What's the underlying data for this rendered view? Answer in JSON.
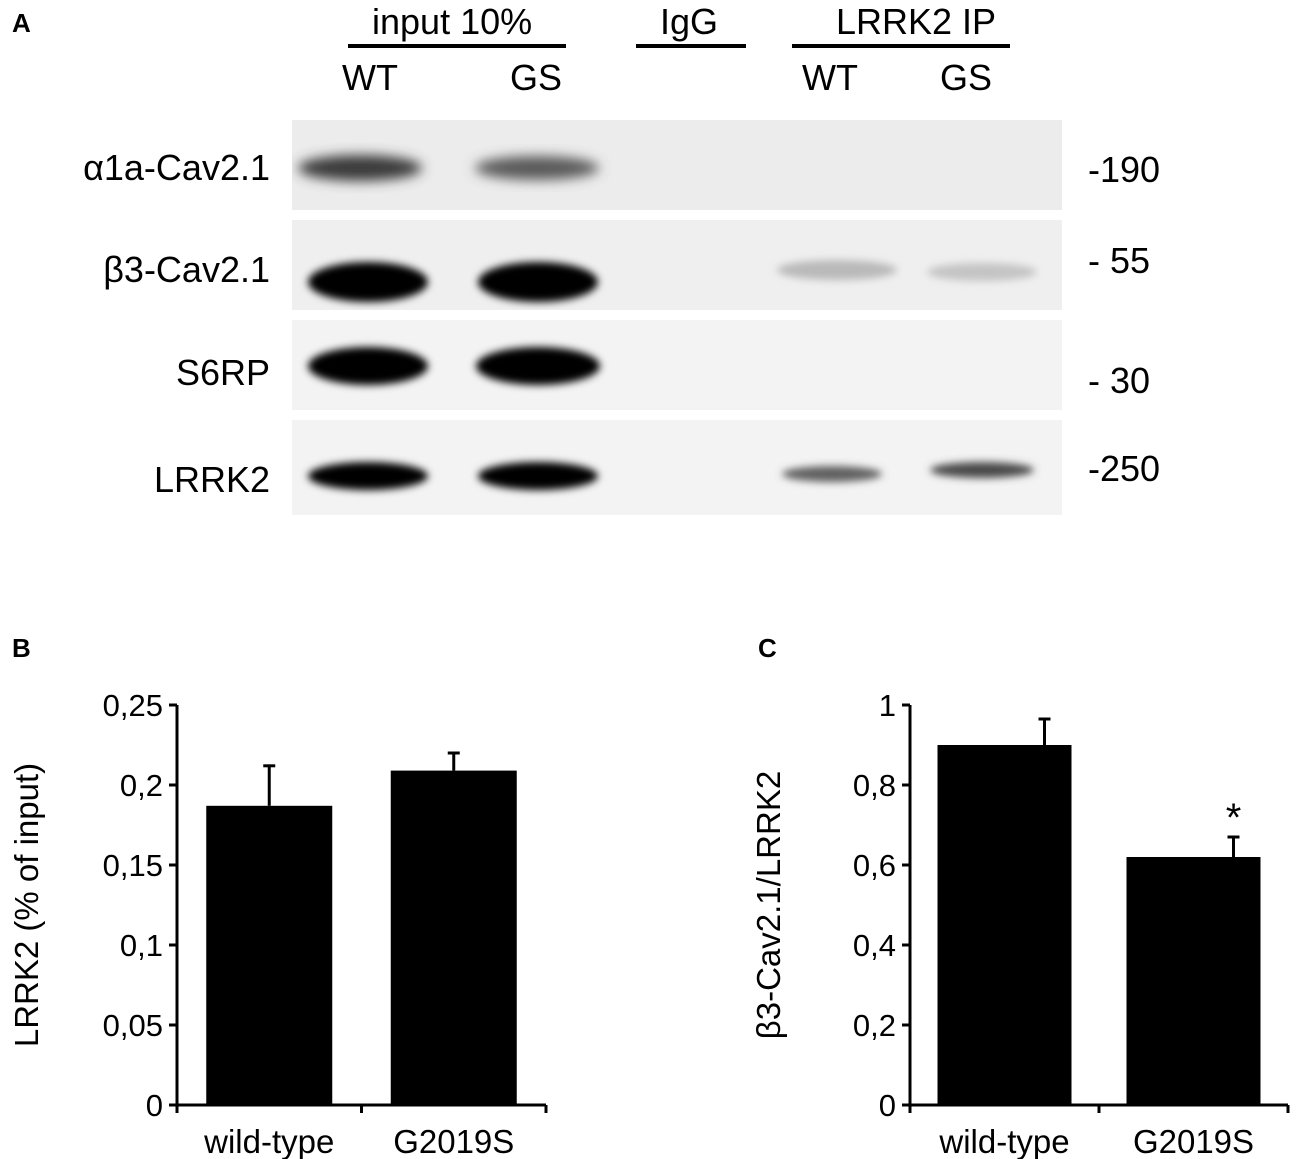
{
  "panel_a": {
    "letter": "A",
    "groups": [
      {
        "label": "input 10%",
        "lanes": [
          "WT",
          "GS"
        ]
      },
      {
        "label": "IgG",
        "lanes": []
      },
      {
        "label": "LRRK2 IP",
        "lanes": [
          "WT",
          "GS"
        ]
      }
    ],
    "blots": [
      {
        "label": "α1a-Cav2.1",
        "marker": "-190"
      },
      {
        "label": "β3-Cav2.1",
        "marker": "- 55"
      },
      {
        "label": "S6RP",
        "marker": "- 30"
      },
      {
        "label": "LRRK2",
        "marker": "-250"
      }
    ]
  },
  "chart_data": [
    {
      "panel": "B",
      "type": "bar",
      "categories": [
        "wild-type",
        "G2019S"
      ],
      "values": [
        0.187,
        0.209
      ],
      "errors": [
        0.025,
        0.011
      ],
      "ylabel": "LRRK2 (% of input)",
      "ylim": [
        0,
        0.25
      ],
      "yticks": [
        "0",
        "0,05",
        "0,1",
        "0,15",
        "0,2",
        "0,25"
      ],
      "annotations": [
        "",
        ""
      ],
      "bar_color": "#000000"
    },
    {
      "panel": "C",
      "type": "bar",
      "categories": [
        "wild-type",
        "G2019S"
      ],
      "values": [
        0.9,
        0.62
      ],
      "errors": [
        0.065,
        0.05
      ],
      "ylabel": "β3-Cav2.1/LRRK2",
      "ylim": [
        0,
        1
      ],
      "yticks": [
        "0",
        "0,2",
        "0,4",
        "0,6",
        "0,8",
        "1"
      ],
      "annotations": [
        "",
        "*"
      ],
      "bar_color": "#000000"
    }
  ]
}
